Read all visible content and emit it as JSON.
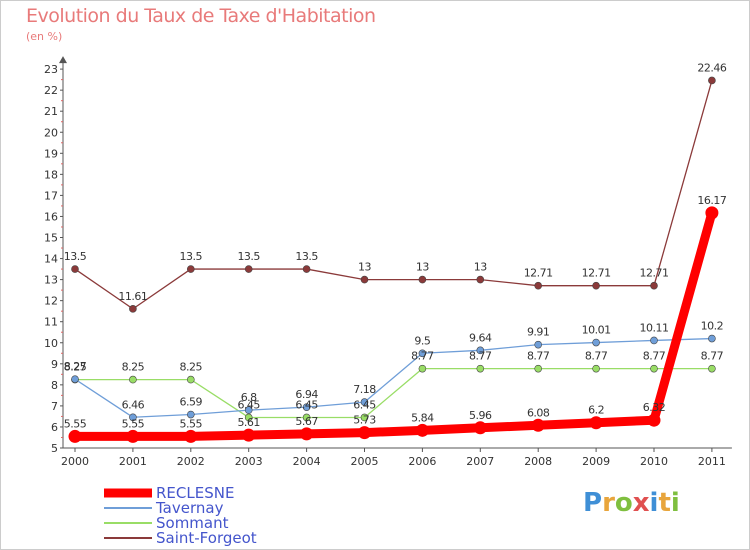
{
  "header": {
    "title": "Evolution du Taux de Taxe d'Habitation",
    "unit": "(en %)"
  },
  "brand": {
    "letters": [
      "P",
      "r",
      "o",
      "x",
      "i",
      "t",
      "i"
    ],
    "colors": [
      "#3f8fd6",
      "#e8a53c",
      "#7fbf3f",
      "#e05050",
      "#3f8fd6",
      "#e8a53c",
      "#7fbf3f"
    ]
  },
  "chart_data": {
    "type": "line",
    "title": "Evolution du Taux de Taxe d'Habitation",
    "ylabel": "(en %)",
    "xlabel": "",
    "x": [
      "2000",
      "2001",
      "2002",
      "2003",
      "2004",
      "2005",
      "2006",
      "2007",
      "2008",
      "2009",
      "2010",
      "2011"
    ],
    "ylim": [
      5,
      23
    ],
    "yticks": [
      5,
      6,
      7,
      8,
      9,
      10,
      11,
      12,
      13,
      14,
      15,
      16,
      17,
      18,
      19,
      20,
      21,
      22,
      23
    ],
    "grid": false,
    "legend": "bottom-left",
    "series": [
      {
        "name": "RECLESNE",
        "color": "#ff0000",
        "values": [
          5.55,
          5.55,
          5.55,
          5.61,
          5.67,
          5.73,
          5.84,
          5.96,
          6.08,
          6.2,
          6.32,
          16.17
        ],
        "labels": [
          "5.55",
          "5.55",
          "5.55",
          "5.61",
          "5.67",
          "5.73",
          "5.84",
          "5.96",
          "6.08",
          "6.2",
          "6.32",
          "16.17"
        ]
      },
      {
        "name": "Tavernay",
        "color": "#6f9ed8",
        "values": [
          8.27,
          6.46,
          6.59,
          6.8,
          6.94,
          7.18,
          9.5,
          9.64,
          9.91,
          10.01,
          10.11,
          10.2
        ],
        "labels": [
          "8.27",
          "6.46",
          "6.59",
          "6.8",
          "6.94",
          "7.18",
          "9.5",
          "9.64",
          "9.91",
          "10.01",
          "10.11",
          "10.2"
        ]
      },
      {
        "name": "Sommant",
        "color": "#99dd66",
        "values": [
          8.25,
          8.25,
          8.25,
          6.45,
          6.45,
          6.45,
          8.77,
          8.77,
          8.77,
          8.77,
          8.77,
          8.77
        ],
        "labels": [
          "8.25",
          "8.25",
          "8.25",
          "6.45",
          "6.45",
          "6.45",
          "8.77",
          "8.77",
          "8.77",
          "8.77",
          "8.77",
          "8.77"
        ]
      },
      {
        "name": "Saint-Forgeot",
        "color": "#8b3a3a",
        "values": [
          13.5,
          11.61,
          13.5,
          13.5,
          13.5,
          13,
          13,
          13,
          12.71,
          12.71,
          12.71,
          22.46
        ],
        "labels": [
          "13.5",
          "11.61",
          "13.5",
          "13.5",
          "13.5",
          "13",
          "13",
          "13",
          "12.71",
          "12.71",
          "12.71",
          "22.46"
        ]
      }
    ]
  }
}
